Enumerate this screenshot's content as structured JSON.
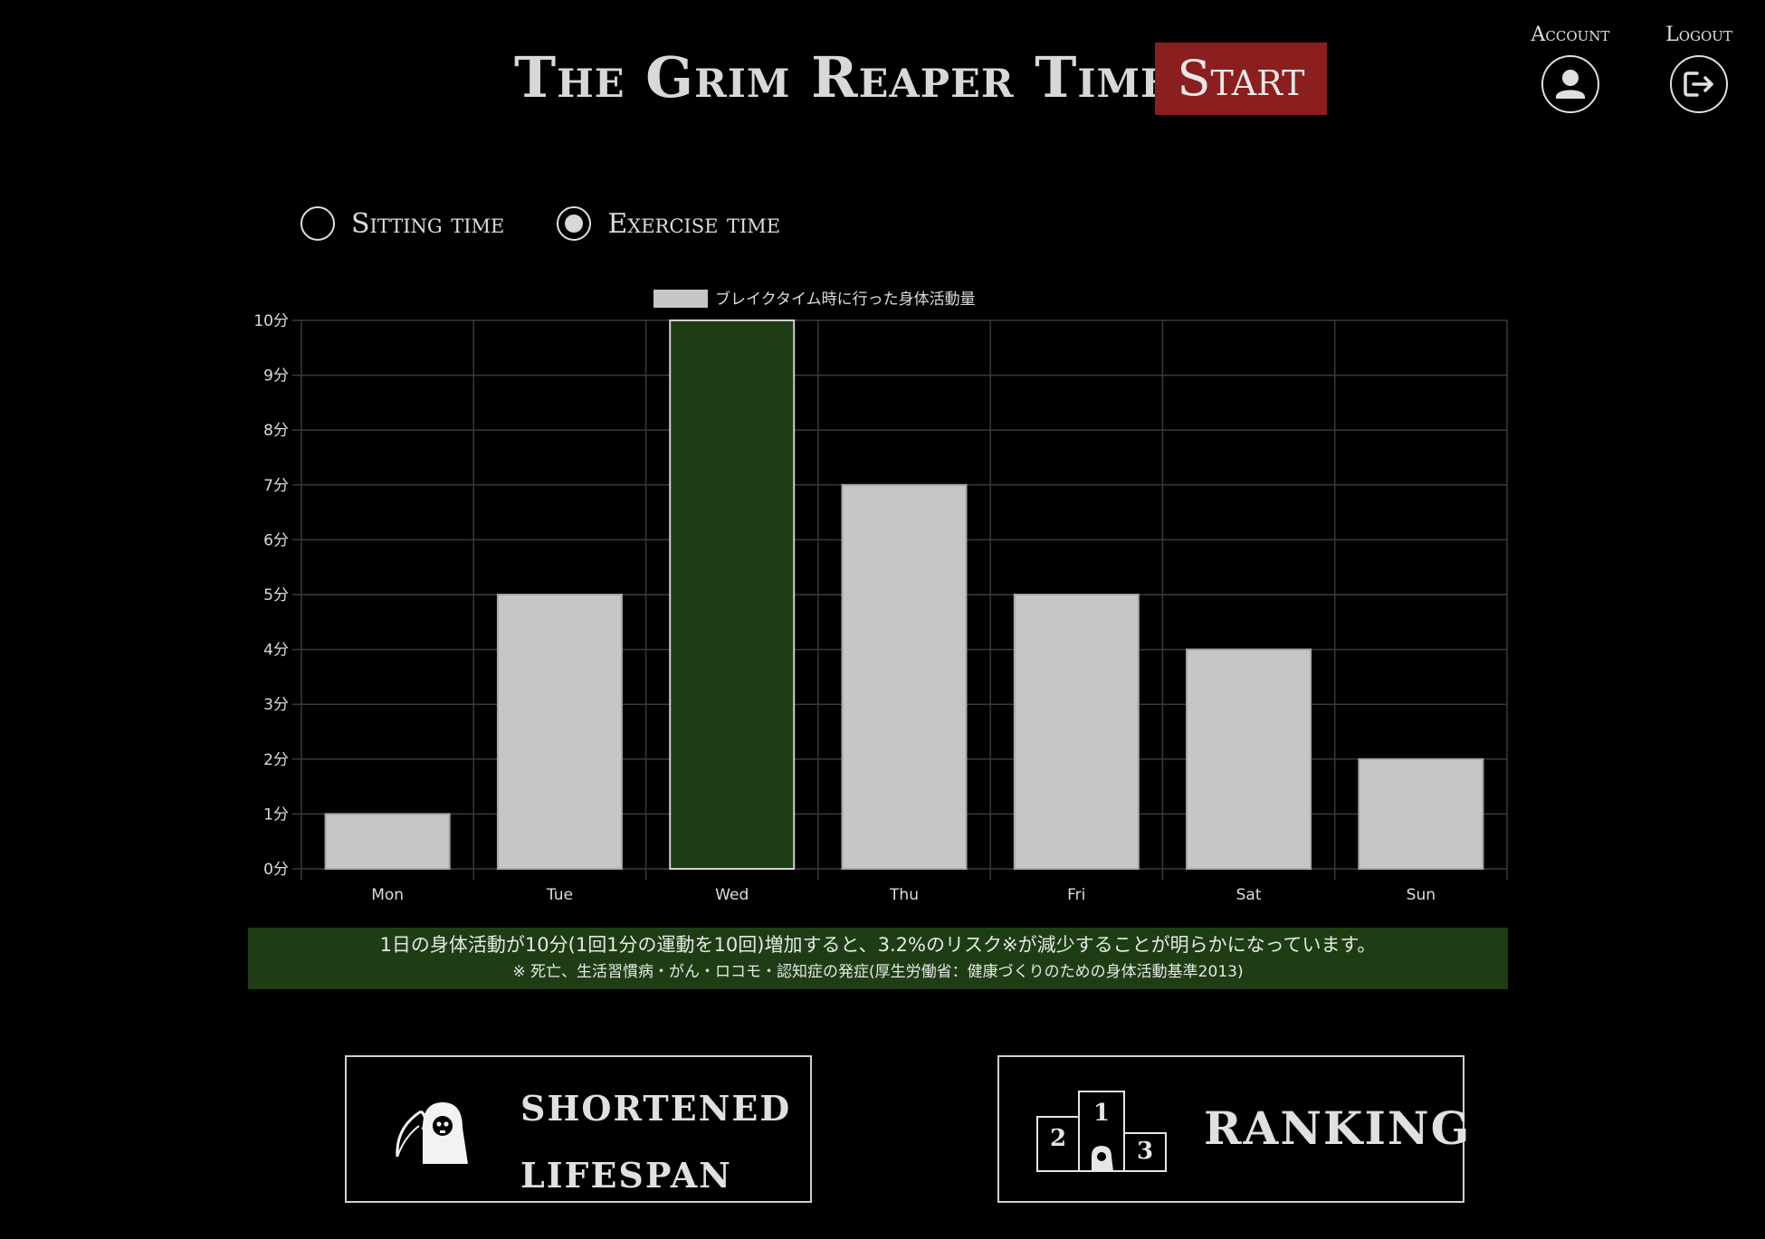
{
  "header": {
    "title": "The Grim Reaper Timer",
    "start_label": "Start",
    "account_label": "Account",
    "account_icon": "user-icon",
    "logout_label": "Logout",
    "logout_icon": "logout-icon"
  },
  "toggle": {
    "options": [
      {
        "label": "Sitting time",
        "selected": false
      },
      {
        "label": "Exercise time",
        "selected": true
      }
    ]
  },
  "colors": {
    "accent_red": "#8b1e1e",
    "accent_green": "#1e3d14",
    "bar_gray": "#c6c6c6",
    "highlight_bar": "#1e3d14"
  },
  "chart_data": {
    "type": "bar",
    "categories": [
      "Mon",
      "Tue",
      "Wed",
      "Thu",
      "Fri",
      "Sat",
      "Sun"
    ],
    "series": [
      {
        "name": "ブレイクタイム時に行った身体活動量",
        "values": [
          1,
          5,
          10,
          7,
          5,
          4,
          2
        ]
      }
    ],
    "highlight_index": 2,
    "ylim": [
      0,
      10
    ],
    "yticks": [
      "0分",
      "1分",
      "2分",
      "3分",
      "4分",
      "5分",
      "6分",
      "7分",
      "8分",
      "9分",
      "10分"
    ],
    "xlabel": "",
    "ylabel": "",
    "grid": true,
    "legend": "top-center"
  },
  "info": {
    "main": "1日の身体活動が10分(1回1分の運動を10回)増加すると、3.2%のリスク※が減少することが明らかになっています。",
    "note": "※ 死亡、生活習慣病・がん・ロコモ・認知症の発症(厚生労働省：健康づくりのための身体活動基準2013)"
  },
  "buttons": {
    "lifespan_line1": "SHORTENED",
    "lifespan_line2": "LIFESPAN",
    "lifespan_icon": "grim-reaper-icon",
    "ranking_label": "RANKING",
    "ranking_icon": "podium-icon",
    "podium_numbers": [
      "1",
      "2",
      "3"
    ]
  }
}
